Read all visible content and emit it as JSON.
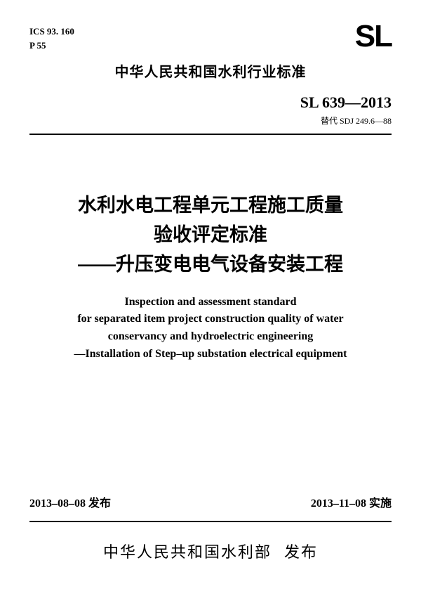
{
  "codes": {
    "ics": "ICS 93. 160",
    "p": "P 55"
  },
  "logo_text": "SL",
  "top_header": "中华人民共和国水利行业标准",
  "standard_number": "SL 639—2013",
  "replace_text": "替代 SDJ 249.6—88",
  "title_cn_line1": "水利水电工程单元工程施工质量",
  "title_cn_line2": "验收评定标准",
  "title_cn_line3": "——升压变电电气设备安装工程",
  "title_en_line1": "Inspection and assessment standard",
  "title_en_line2": "for separated item project construction quality of water",
  "title_en_line3": "conservancy and hydroelectric engineering",
  "title_en_line4": "—Installation of Step–up substation electrical equipment",
  "issue_date": "2013–08–08 发布",
  "impl_date": "2013–11–08 实施",
  "publisher_org": "中华人民共和国水利部",
  "publisher_action": "发布"
}
